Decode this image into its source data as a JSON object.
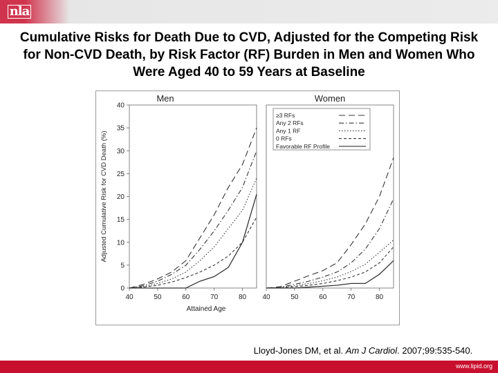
{
  "header": {
    "logo_text": "nla"
  },
  "slide": {
    "title": "Cumulative Risks for Death Due to CVD, Adjusted for the Competing Risk for Non-CVD Death, by Risk Factor (RF) Burden in Men and Women Who Were Aged 40 to 59 Years at Baseline"
  },
  "citation": {
    "prefix": "Lloyd-Jones DM, et al. ",
    "journal": "Am J Cardiol",
    "suffix": ". 2007;99:535-540."
  },
  "footer": {
    "url": "www.lipid.org"
  },
  "colors": {
    "accent": "#c8102e",
    "line": "#333333"
  },
  "chart_data": [
    {
      "type": "line",
      "title": "Men",
      "xlabel": "Attained Age",
      "ylabel": "Adjusted Cumulative Risk for CVD Death (%)",
      "xlim": [
        40,
        85
      ],
      "ylim": [
        0,
        40
      ],
      "x_ticks": [
        "40",
        "50",
        "60",
        "70",
        "80"
      ],
      "y_ticks": [
        "0",
        "5",
        "10",
        "15",
        "20",
        "25",
        "30",
        "35",
        "40"
      ],
      "series": [
        {
          "name": "≥3 RFs",
          "style": "longdash",
          "points": [
            [
              40,
              0
            ],
            [
              45,
              0.8
            ],
            [
              50,
              2
            ],
            [
              55,
              3.5
            ],
            [
              60,
              6
            ],
            [
              65,
              11
            ],
            [
              70,
              16
            ],
            [
              75,
              22
            ],
            [
              80,
              27
            ],
            [
              85,
              35
            ]
          ]
        },
        {
          "name": "Any 2 RFs",
          "style": "dashdot",
          "points": [
            [
              40,
              0
            ],
            [
              45,
              0.5
            ],
            [
              50,
              1.5
            ],
            [
              55,
              3
            ],
            [
              60,
              5
            ],
            [
              65,
              8.5
            ],
            [
              70,
              12.5
            ],
            [
              75,
              17
            ],
            [
              80,
              22
            ],
            [
              85,
              30
            ]
          ]
        },
        {
          "name": "Any 1 RF",
          "style": "dotted",
          "points": [
            [
              40,
              0
            ],
            [
              45,
              0.3
            ],
            [
              50,
              1
            ],
            [
              55,
              2
            ],
            [
              60,
              3.5
            ],
            [
              65,
              6
            ],
            [
              70,
              9
            ],
            [
              75,
              13
            ],
            [
              80,
              17
            ],
            [
              85,
              24
            ]
          ]
        },
        {
          "name": "0 RFs",
          "style": "shortdash",
          "points": [
            [
              40,
              0
            ],
            [
              45,
              0.2
            ],
            [
              50,
              0.6
            ],
            [
              55,
              1.3
            ],
            [
              60,
              2.3
            ],
            [
              65,
              3.5
            ],
            [
              70,
              5
            ],
            [
              75,
              7
            ],
            [
              80,
              10
            ],
            [
              85,
              15.5
            ]
          ]
        },
        {
          "name": "Favorable RF Profile",
          "style": "solid",
          "points": [
            [
              40,
              0
            ],
            [
              50,
              0
            ],
            [
              60,
              0
            ],
            [
              65,
              1.5
            ],
            [
              70,
              2.5
            ],
            [
              75,
              4.5
            ],
            [
              80,
              10
            ],
            [
              85,
              20.5
            ]
          ]
        }
      ]
    },
    {
      "type": "line",
      "title": "Women",
      "xlabel": "Attained Age",
      "ylabel": "Adjusted Cumulative Risk for CVD Death (%)",
      "xlim": [
        40,
        85
      ],
      "ylim": [
        0,
        40
      ],
      "x_ticks": [
        "40",
        "50",
        "60",
        "70",
        "80"
      ],
      "y_ticks": [
        "0",
        "5",
        "10",
        "15",
        "20",
        "25",
        "30",
        "35",
        "40"
      ],
      "legend": {
        "position": "top-right",
        "entries": [
          "≥3 RFs",
          "Any 2 RFs",
          "Any 1 RF",
          "0 RFs",
          "Favorable RF Profile"
        ]
      },
      "series": [
        {
          "name": "≥3 RFs",
          "style": "longdash",
          "points": [
            [
              40,
              0
            ],
            [
              45,
              0.3
            ],
            [
              50,
              1.5
            ],
            [
              55,
              2.7
            ],
            [
              60,
              3.8
            ],
            [
              65,
              5.5
            ],
            [
              70,
              9.5
            ],
            [
              75,
              14
            ],
            [
              80,
              20
            ],
            [
              85,
              28.5
            ]
          ]
        },
        {
          "name": "Any 2 RFs",
          "style": "dashdot",
          "points": [
            [
              40,
              0
            ],
            [
              45,
              0.2
            ],
            [
              50,
              0.8
            ],
            [
              55,
              1.5
            ],
            [
              60,
              2.4
            ],
            [
              65,
              3.5
            ],
            [
              70,
              5.5
            ],
            [
              75,
              8.5
            ],
            [
              80,
              13
            ],
            [
              85,
              19.5
            ]
          ]
        },
        {
          "name": "Any 1 RF",
          "style": "dotted",
          "points": [
            [
              40,
              0
            ],
            [
              45,
              0.1
            ],
            [
              50,
              0.5
            ],
            [
              55,
              1
            ],
            [
              60,
              1.6
            ],
            [
              65,
              2.4
            ],
            [
              70,
              3.6
            ],
            [
              75,
              5.2
            ],
            [
              80,
              7.8
            ],
            [
              85,
              10.5
            ]
          ]
        },
        {
          "name": "0 RFs",
          "style": "shortdash",
          "points": [
            [
              40,
              0
            ],
            [
              45,
              0.05
            ],
            [
              50,
              0.3
            ],
            [
              55,
              0.6
            ],
            [
              60,
              1
            ],
            [
              65,
              1.6
            ],
            [
              70,
              2.4
            ],
            [
              75,
              3.5
            ],
            [
              80,
              5.5
            ],
            [
              85,
              9
            ]
          ]
        },
        {
          "name": "Favorable RF Profile",
          "style": "solid",
          "points": [
            [
              40,
              0
            ],
            [
              45,
              0
            ],
            [
              50,
              0
            ],
            [
              55,
              0.2
            ],
            [
              60,
              0.4
            ],
            [
              65,
              0.6
            ],
            [
              70,
              1
            ],
            [
              75,
              1
            ],
            [
              80,
              3
            ],
            [
              85,
              6
            ]
          ]
        }
      ]
    }
  ]
}
